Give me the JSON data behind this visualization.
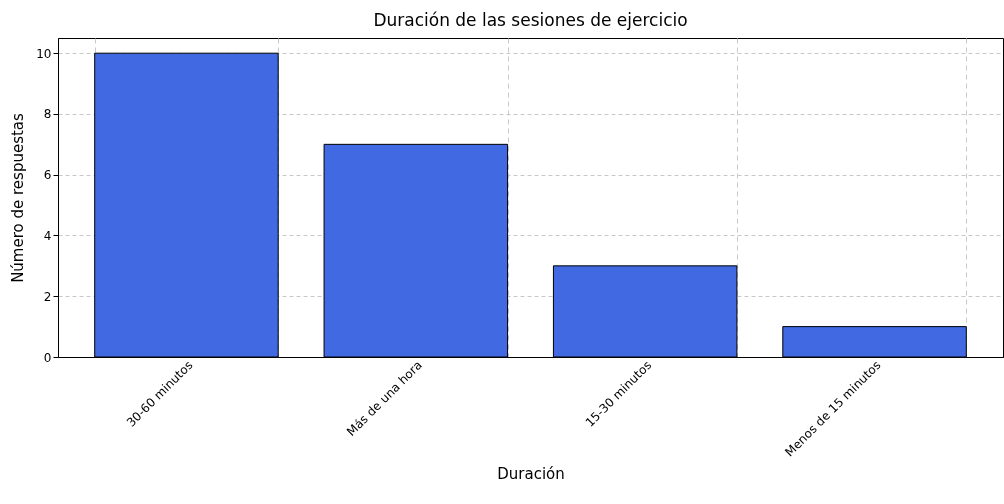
{
  "chart_data": {
    "type": "bar",
    "title": "Duración de las sesiones de ejercicio",
    "xlabel": "Duración",
    "ylabel": "Número de respuestas",
    "categories": [
      "30-60 minutos",
      "Más de una hora",
      "15-30 minutos",
      "Menos de 15 minutos"
    ],
    "values": [
      10,
      7,
      3,
      1
    ],
    "color": "#4169e1",
    "ylim": [
      0,
      10.5
    ],
    "yticks": [
      0,
      2,
      4,
      6,
      8,
      10
    ],
    "grid": true
  }
}
